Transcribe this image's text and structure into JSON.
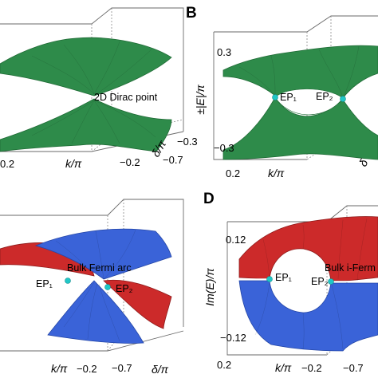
{
  "panels": [
    {
      "id": "A",
      "letter": "",
      "annotation": "2D Dirac point",
      "k_ticks": [
        "0.2"
      ],
      "k_label": "k/π",
      "delta_ticks": [
        "−0.3",
        "−0.7",
        "−0.2"
      ],
      "delta_label": "δ/π"
    },
    {
      "id": "B",
      "letter": "B",
      "z_label": "±|E|/π",
      "z_ticks": [
        "0.3",
        "−0.3"
      ],
      "ep_labels": [
        "EP₁",
        "EP₂"
      ],
      "k_ticks": [
        "0.2"
      ],
      "k_label": "k/π",
      "delta_label": "δ"
    },
    {
      "id": "C",
      "letter": "",
      "annotation": "Bulk Fermi arc",
      "ep_labels": [
        "EP₁",
        "EP₂"
      ],
      "k_label": "k/π",
      "k_ticks": [
        "−0.2"
      ],
      "delta_ticks": [
        "−0.7"
      ],
      "delta_label": "δ/π"
    },
    {
      "id": "D",
      "letter": "D",
      "z_label": "Im(E)/π",
      "z_ticks": [
        "0.12",
        "−0.12"
      ],
      "annotation": "Bulk i-Ferm",
      "ep_labels": [
        "EP₁",
        "EP₂"
      ],
      "k_label": "k/π",
      "k_ticks": [
        "−0.2",
        "0.2"
      ],
      "delta_ticks": [
        "−0.7"
      ]
    }
  ],
  "colors": {
    "green_surface": "#2e8b4a",
    "red_surface": "#cc2a2a",
    "blue_surface": "#3a63d8",
    "exceptional_point": "#20c7c7"
  }
}
